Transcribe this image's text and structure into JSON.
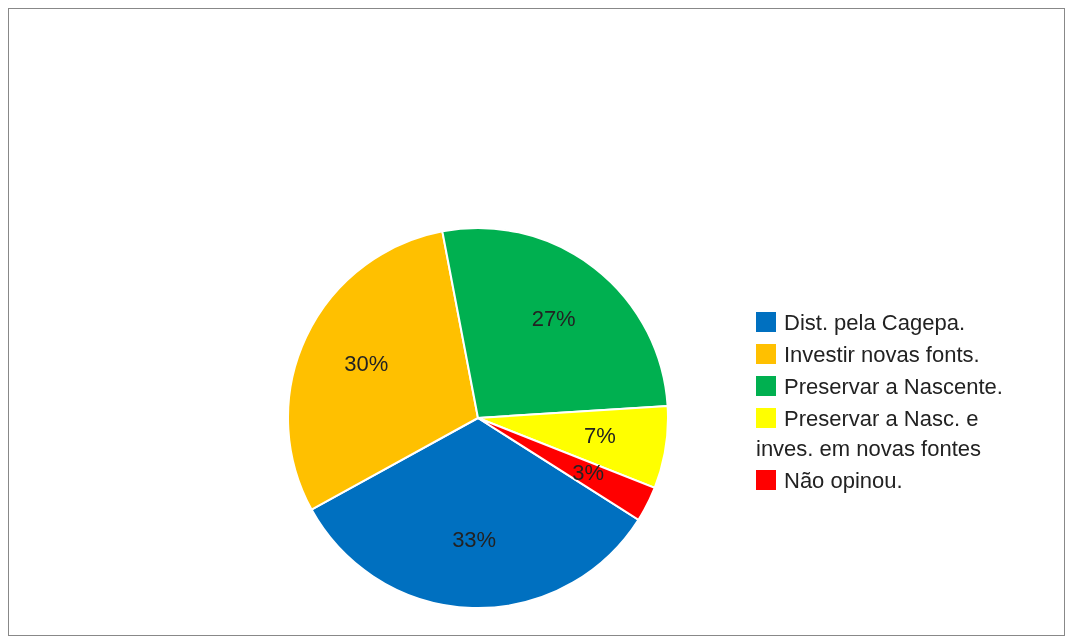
{
  "chart_data": {
    "type": "pie",
    "categories": [
      "Dist. pela Cagepa.",
      "Investir novas fonts.",
      "Preservar a Nascente.",
      "Preservar a Nasc. e inves. em novas fontes",
      "Não opinou."
    ],
    "values": [
      33,
      30,
      27,
      7,
      3
    ],
    "colors": [
      "#0070c0",
      "#ffc000",
      "#00b050",
      "#ffff00",
      "#ff0000"
    ],
    "value_labels": [
      "33%",
      "30%",
      "27%",
      "7%",
      "3%"
    ],
    "legend": "right"
  }
}
